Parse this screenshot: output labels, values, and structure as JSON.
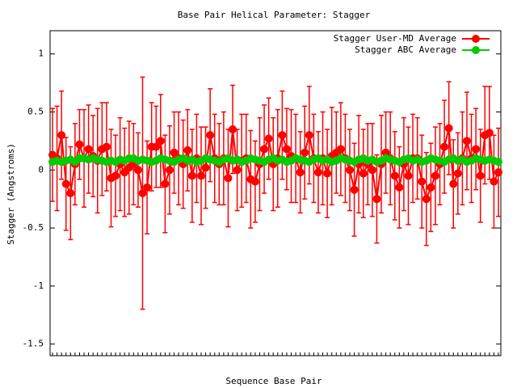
{
  "chart_data": {
    "type": "errorbar-line",
    "title": "Base Pair Helical Parameter: Stagger",
    "x_label": "Sequence Base Pair",
    "y_label": "Stagger (Angstroms)",
    "categories": [
      null,
      null,
      null,
      null,
      null,
      null,
      null,
      null,
      null,
      null,
      null,
      null,
      null,
      null,
      null,
      null,
      null,
      null,
      null,
      null,
      null,
      null,
      null,
      null,
      null,
      null,
      null,
      null,
      null,
      null,
      null,
      null,
      null,
      null,
      null,
      null,
      null,
      null,
      null,
      null,
      null,
      null,
      null,
      null,
      null,
      null,
      null,
      null,
      null,
      null,
      null,
      null,
      null,
      null,
      null,
      null,
      null,
      null,
      null,
      null,
      null,
      null,
      null,
      null,
      null,
      null,
      null,
      null,
      null,
      null,
      null,
      null,
      null,
      null,
      null,
      null,
      null,
      null,
      null,
      null,
      null,
      null,
      null,
      null,
      null,
      null,
      null,
      null,
      null,
      null,
      null,
      null,
      null,
      null,
      null,
      null,
      null,
      null,
      null,
      null
    ],
    "ylim": [
      -1.6,
      1.2
    ],
    "yticks": [
      -1.5,
      -1,
      -0.5,
      0,
      0.5,
      1
    ],
    "legend": "top-right",
    "series": [
      {
        "name": "Stagger User-MD Average",
        "color": "#ff0000",
        "values": [
          0.13,
          0.1,
          0.3,
          -0.12,
          -0.2,
          0.05,
          0.22,
          0.1,
          0.18,
          0.12,
          0.08,
          0.18,
          0.2,
          -0.07,
          -0.05,
          0.05,
          -0.02,
          0.02,
          0.05,
          0,
          -0.2,
          -0.15,
          0.2,
          0.2,
          0.25,
          -0.12,
          0,
          0.15,
          0.1,
          0.05,
          0.17,
          -0.05,
          0.1,
          -0.05,
          0.02,
          0.3,
          0.1,
          0.05,
          0.1,
          -0.07,
          0.35,
          0,
          0.08,
          0.1,
          -0.08,
          -0.1,
          0.05,
          0.18,
          0.27,
          0.05,
          0.1,
          0.3,
          0.18,
          0.12,
          0.1,
          -0.02,
          0.15,
          0.3,
          0.1,
          -0.02,
          0.1,
          -0.03,
          0.12,
          0.15,
          0.18,
          0.1,
          0,
          -0.17,
          0.05,
          -0.03,
          0.05,
          0,
          -0.25,
          0.05,
          0.15,
          0.1,
          -0.05,
          -0.15,
          0.05,
          -0.05,
          0.1,
          0.1,
          -0.1,
          -0.25,
          -0.15,
          -0.05,
          0.05,
          0.2,
          0.36,
          -0.12,
          -0.03,
          0.1,
          0.25,
          0.1,
          0.18,
          -0.05,
          0.3,
          0.32,
          -0.1,
          -0.02
        ],
        "errors": [
          0.4,
          0.45,
          0.38,
          0.4,
          0.4,
          0.35,
          0.3,
          0.42,
          0.38,
          0.35,
          0.45,
          0.4,
          0.38,
          0.42,
          0.35,
          0.4,
          0.38,
          0.4,
          0.35,
          0.32,
          1.0,
          0.4,
          0.38,
          0.35,
          0.4,
          0.42,
          0.38,
          0.35,
          0.4,
          0.38,
          0.35,
          0.4,
          0.38,
          0.42,
          0.35,
          0.4,
          0.38,
          0.35,
          0.4,
          0.42,
          0.38,
          0.35,
          0.4,
          0.38,
          0.42,
          0.35,
          0.4,
          0.38,
          0.35,
          0.4,
          0.42,
          0.38,
          0.35,
          0.4,
          0.38,
          0.35,
          0.4,
          0.42,
          0.38,
          0.35,
          0.4,
          0.38,
          0.42,
          0.35,
          0.4,
          0.38,
          0.35,
          0.4,
          0.42,
          0.38,
          0.35,
          0.4,
          0.38,
          0.42,
          0.35,
          0.4,
          0.38,
          0.35,
          0.4,
          0.42,
          0.38,
          0.35,
          0.4,
          0.4,
          0.38,
          0.42,
          0.35,
          0.4,
          0.4,
          0.38,
          0.35,
          0.4,
          0.42,
          0.38,
          0.35,
          0.4,
          0.42,
          0.4,
          0.4,
          0.38
        ]
      },
      {
        "name": "Stagger ABC Average",
        "color": "#00cc00",
        "values": [
          0.07,
          0.08,
          0.07,
          0.08,
          0.09,
          0.07,
          0.1,
          0.1,
          0.09,
          0.1,
          0.09,
          0.08,
          0.07,
          0.08,
          0.07,
          0.09,
          0.08,
          0.1,
          0.1,
          0.08,
          0.09,
          0.08,
          0.07,
          0.08,
          0.1,
          0.09,
          0.08,
          0.07,
          0.09,
          0.1,
          0.08,
          0.09,
          0.07,
          0.08,
          0.1,
          0.09,
          0.08,
          0.07,
          0.09,
          0.1,
          0.08,
          0.09,
          0.07,
          0.08,
          0.1,
          0.09,
          0.08,
          0.07,
          0.09,
          0.1,
          0.08,
          0.09,
          0.07,
          0.08,
          0.1,
          0.09,
          0.08,
          0.07,
          0.09,
          0.1,
          0.08,
          0.09,
          0.07,
          0.08,
          0.1,
          0.09,
          0.08,
          0.07,
          0.09,
          0.1,
          0.08,
          0.09,
          0.07,
          0.08,
          0.1,
          0.09,
          0.08,
          0.07,
          0.09,
          0.1,
          0.08,
          0.09,
          0.07,
          0.08,
          0.1,
          0.09,
          0.08,
          0.07,
          0.09,
          0.1,
          0.08,
          0.09,
          0.07,
          0.08,
          0.1,
          0.09,
          0.08,
          0.09,
          0.08,
          0.07
        ]
      }
    ]
  }
}
